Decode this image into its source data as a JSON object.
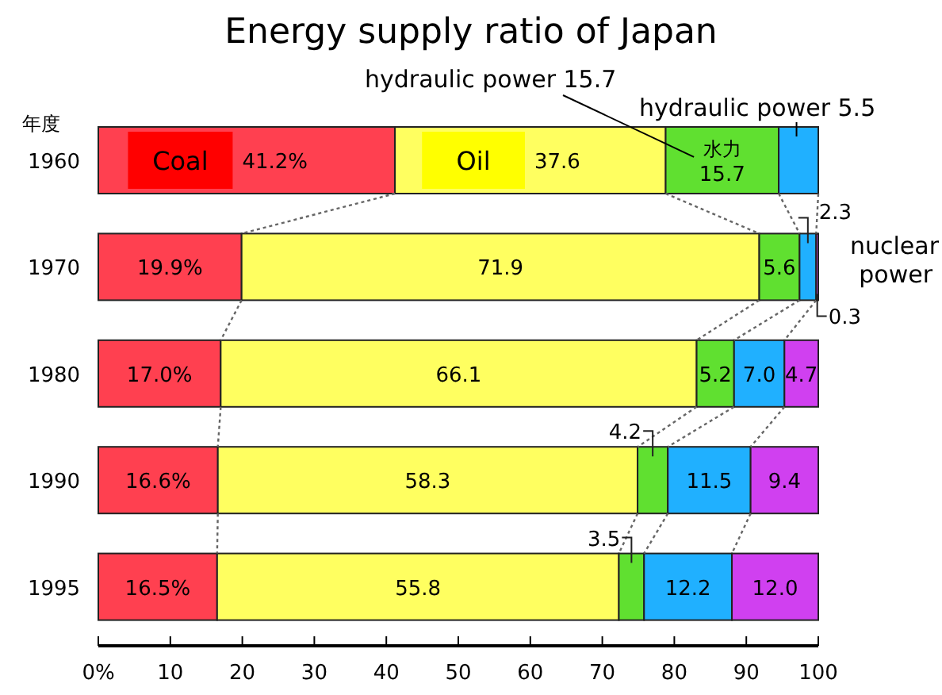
{
  "chart_data": {
    "type": "bar",
    "orientation": "horizontal",
    "stacked": true,
    "title": "Energy supply ratio of Japan",
    "ylabel": "年度",
    "categories": [
      "1960",
      "1970",
      "1980",
      "1990",
      "1995"
    ],
    "series": [
      {
        "name": "Coal",
        "color": "#ff4050",
        "values": [
          41.2,
          19.9,
          17.0,
          16.6,
          16.5
        ],
        "value_labels": [
          "41.2%",
          "19.9%",
          "17.0%",
          "16.6%",
          "16.5%"
        ]
      },
      {
        "name": "Oil",
        "color": "#ffff60",
        "values": [
          37.6,
          71.9,
          66.1,
          58.3,
          55.8
        ],
        "value_labels": [
          "37.6",
          "71.9",
          "66.1",
          "58.3",
          "55.8"
        ]
      },
      {
        "name": "水力",
        "color": "#60e030",
        "values": [
          15.7,
          5.6,
          5.2,
          4.2,
          3.5
        ],
        "value_labels": [
          "15.7",
          "5.6",
          "5.2",
          "4.2",
          "3.5"
        ]
      },
      {
        "color": "#20b0ff",
        "values": [
          5.5,
          2.3,
          7.0,
          11.5,
          12.2
        ],
        "value_labels": [
          null,
          "2.3",
          "7.0",
          "11.5",
          "12.2"
        ]
      },
      {
        "color": "#d040f0",
        "values": [
          null,
          0.3,
          4.7,
          9.4,
          12.0
        ],
        "value_labels": [
          null,
          "0.3",
          "4.7",
          "9.4",
          "12.0"
        ]
      }
    ],
    "annotations": [
      "hydraulic power  15.7",
      "hydraulic power  5.5",
      "nuclear power"
    ],
    "xlim": [
      0,
      100
    ],
    "xticks": [
      {
        "value": 0,
        "label": "0%"
      },
      10,
      20,
      30,
      40,
      50,
      60,
      70,
      80,
      90,
      100
    ],
    "grid": false,
    "legend": false
  }
}
